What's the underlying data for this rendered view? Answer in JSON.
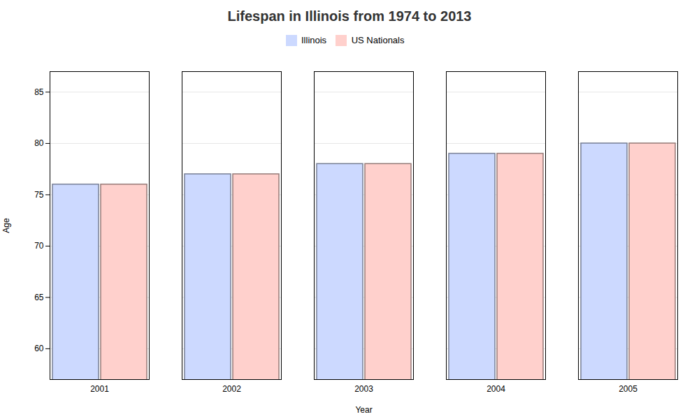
{
  "chart_data": {
    "type": "bar",
    "title": "Lifespan in Illinois from 1974 to 2013",
    "xlabel": "Year",
    "ylabel": "Age",
    "categories": [
      "2001",
      "2002",
      "2003",
      "2004",
      "2005"
    ],
    "series": [
      {
        "name": "Illinois",
        "color": "#ccd9ff",
        "values": [
          76,
          77,
          78,
          79,
          80
        ]
      },
      {
        "name": "US Nationals",
        "color": "#ffd0cc",
        "values": [
          76,
          77,
          78,
          79,
          80
        ]
      }
    ],
    "ylim": [
      57,
      87
    ],
    "yticks": [
      60,
      65,
      70,
      75,
      80,
      85
    ],
    "grid": true,
    "legend": "top"
  }
}
